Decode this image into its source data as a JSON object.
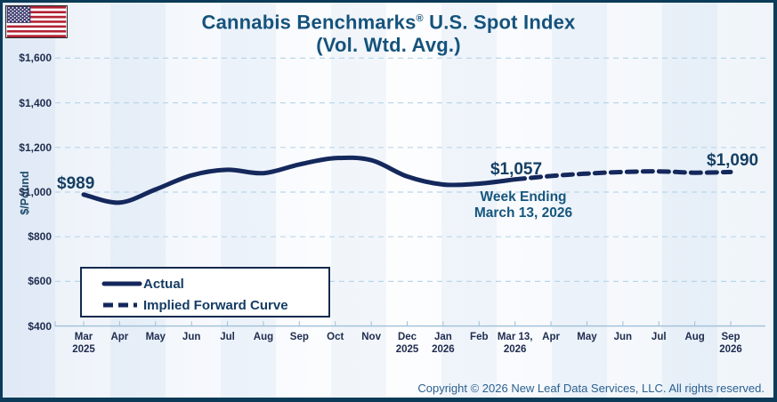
{
  "title": {
    "brand": "Cannabis Benchmarks",
    "registered": "®",
    "rest": " U.S. Spot Index",
    "line2": "(Vol. Wtd. Avg.)"
  },
  "y_axis": {
    "label": "$/Pound",
    "ticks": [
      {
        "label": "$1,600",
        "value": 1600
      },
      {
        "label": "$1,400",
        "value": 1400
      },
      {
        "label": "$1,200",
        "value": 1200
      },
      {
        "label": "$1,000",
        "value": 1000
      },
      {
        "label": "$800",
        "value": 800
      },
      {
        "label": "$600",
        "value": 600
      },
      {
        "label": "$400",
        "value": 400
      }
    ]
  },
  "x_axis": {
    "tick_labels": [
      "Mar\n2025",
      "Apr",
      "May",
      "Jun",
      "Jul",
      "Aug",
      "Sep",
      "Oct",
      "Nov",
      "Dec\n2025",
      "Jan\n2026",
      "Feb",
      "Mar 13,\n2026",
      "Apr",
      "May",
      "Jun",
      "Jul",
      "Aug",
      "Sep\n2026"
    ]
  },
  "annotations": {
    "start_value": "$989",
    "current_value": "$1,057",
    "current_caption_line1": "Week Ending",
    "current_caption_line2": "March 13, 2026",
    "forward_end_value": "$1,090"
  },
  "legend": {
    "items": [
      {
        "label": "Actual",
        "style": "solid"
      },
      {
        "label": "Implied Forward Curve",
        "style": "dashed"
      }
    ]
  },
  "footer": {
    "copyright": "Copyright © 2026 New Leaf Data Services, LLC. All rights reserved."
  },
  "colors": {
    "line": "#14285c",
    "title_text": "#15537c",
    "teal_text": "#16567e",
    "value_label": "#153f63",
    "axis_text": "#1e2c4e",
    "gridline": "#b9d6ea",
    "axis_line": "#9fc0d8",
    "frame_border": "#0b3b58",
    "legend_border": "#102a4e",
    "copyright_text": "#2a6090",
    "flag_red": "#b22234",
    "flag_blue": "#3c3b6e"
  },
  "chart_data": {
    "type": "line",
    "title": "Cannabis Benchmarks® U.S. Spot Index (Vol. Wtd. Avg.)",
    "xlabel": "",
    "ylabel": "$/Pound",
    "ylim": [
      400,
      1600
    ],
    "ytick_interval": 200,
    "grid": "horizontal-dashed",
    "legend_position": "lower-left",
    "categories": [
      "Mar 2025",
      "Apr",
      "May",
      "Jun",
      "Jul",
      "Aug",
      "Sep",
      "Oct",
      "Nov",
      "Dec 2025",
      "Jan 2026",
      "Feb",
      "Mar 13, 2026",
      "Apr",
      "May",
      "Jun",
      "Jul",
      "Aug",
      "Sep 2026"
    ],
    "series": [
      {
        "name": "Actual",
        "style": "solid",
        "start_index": 0,
        "values": [
          989,
          953,
          1012,
          1075,
          1100,
          1085,
          1124,
          1152,
          1143,
          1070,
          1034,
          1038,
          1057
        ]
      },
      {
        "name": "Implied Forward Curve",
        "style": "dashed",
        "start_index": 12,
        "values": [
          1057,
          1072,
          1083,
          1090,
          1093,
          1087,
          1090
        ]
      }
    ],
    "point_labels": [
      {
        "series": "Actual",
        "category": "Mar 2025",
        "label": "$989",
        "value": 989
      },
      {
        "series": "Actual",
        "category": "Mar 13, 2026",
        "label": "$1,057",
        "value": 1057
      },
      {
        "series": "Implied Forward Curve",
        "category": "Sep 2026",
        "label": "$1,090",
        "value": 1090
      }
    ],
    "annotation": "Week Ending March 13, 2026"
  }
}
